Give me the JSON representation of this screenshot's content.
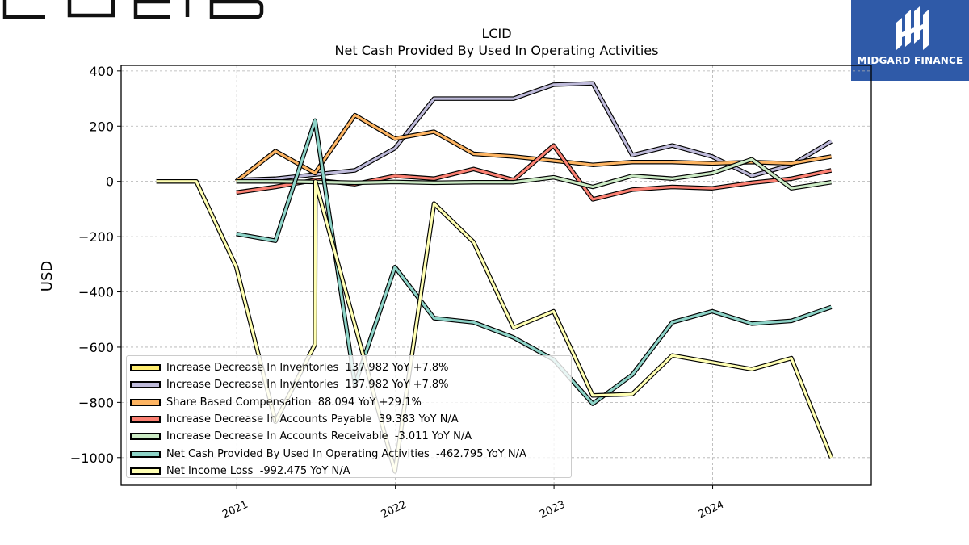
{
  "brand": {
    "logo_text": "LUCID",
    "badge_text": "MIDGARD FINANCE",
    "badge_color": "#2f5aa8"
  },
  "chart_data": {
    "type": "line",
    "title": "LCID",
    "subtitle": "Net Cash Provided By Used In Operating Activities",
    "ylabel": "USD",
    "xlabel": "",
    "ylim": [
      -1100,
      420
    ],
    "yticks": [
      400,
      200,
      0,
      -200,
      -400,
      -600,
      -800,
      -1000
    ],
    "ytick_labels": [
      "400",
      "200",
      "0",
      "−200",
      "−400",
      "−600",
      "−800",
      "−1000"
    ],
    "xlim": [
      "2020-04-10",
      "2024-12-31"
    ],
    "xticks": [
      "2021-01-01",
      "2022-01-01",
      "2023-01-01",
      "2024-01-01"
    ],
    "xtick_labels": [
      "2021",
      "2022",
      "2023",
      "2024"
    ],
    "grid": true,
    "legend_position": "lower left",
    "series": [
      {
        "name": "Increase Decrease In Inventories",
        "legend": "Increase Decrease In Inventories  137.982 YoY +7.8%",
        "color": "#ffed6f",
        "x": [],
        "values": []
      },
      {
        "name": "Increase Decrease In Inventories",
        "legend": "Increase Decrease In Inventories  137.982 YoY +7.8%",
        "color": "#bebada",
        "x": [
          "2020-12-31",
          "2021-03-31",
          "2021-06-30",
          "2021-09-30",
          "2021-12-31",
          "2022-03-31",
          "2022-06-30",
          "2022-09-30",
          "2022-12-31",
          "2023-03-31",
          "2023-06-30",
          "2023-09-30",
          "2023-12-31",
          "2024-03-31",
          "2024-06-30",
          "2024-09-30"
        ],
        "values": [
          5,
          10,
          25,
          40,
          120,
          300,
          300,
          300,
          350,
          355,
          95,
          130,
          90,
          20,
          60,
          145
        ]
      },
      {
        "name": "Share Based Compensation",
        "legend": "Share Based Compensation  88.094 YoY +29.1%",
        "color": "#fdb462",
        "x": [
          "2020-12-31",
          "2021-03-31",
          "2021-06-30",
          "2021-09-30",
          "2021-12-31",
          "2022-03-31",
          "2022-06-30",
          "2022-09-30",
          "2022-12-31",
          "2023-03-31",
          "2023-06-30",
          "2023-09-30",
          "2023-12-31",
          "2024-03-31",
          "2024-06-30",
          "2024-09-30"
        ],
        "values": [
          0,
          110,
          30,
          240,
          155,
          180,
          100,
          90,
          75,
          60,
          70,
          70,
          65,
          70,
          65,
          90
        ]
      },
      {
        "name": "Increase Decrease In Accounts Payable",
        "legend": "Increase Decrease In Accounts Payable  39.383 YoY N/A",
        "color": "#fb8072",
        "x": [
          "2020-12-31",
          "2021-03-31",
          "2021-06-30",
          "2021-09-30",
          "2021-12-31",
          "2022-03-31",
          "2022-06-30",
          "2022-09-30",
          "2022-12-31",
          "2023-03-31",
          "2023-06-30",
          "2023-09-30",
          "2023-12-31",
          "2024-03-31",
          "2024-06-30",
          "2024-09-30"
        ],
        "values": [
          -40,
          -20,
          5,
          -10,
          20,
          10,
          45,
          5,
          130,
          -65,
          -30,
          -20,
          -25,
          -5,
          10,
          40
        ]
      },
      {
        "name": "Increase Decrease In Accounts Receivable",
        "legend": "Increase Decrease In Accounts Receivable  -3.011 YoY N/A",
        "color": "#ccebc5",
        "x": [
          "2020-12-31",
          "2021-03-31",
          "2021-06-30",
          "2021-09-30",
          "2021-12-31",
          "2022-03-31",
          "2022-06-30",
          "2022-09-30",
          "2022-12-31",
          "2023-03-31",
          "2023-06-30",
          "2023-09-30",
          "2023-12-31",
          "2024-03-31",
          "2024-06-30",
          "2024-09-30"
        ],
        "values": [
          0,
          0,
          -2,
          -5,
          -2,
          -5,
          -3,
          -3,
          15,
          -20,
          20,
          10,
          30,
          80,
          -25,
          -3
        ]
      },
      {
        "name": "Net Cash Provided By Used In Operating Activities",
        "legend": "Net Cash Provided By Used In Operating Activities  -462.795 YoY N/A",
        "color": "#8dd3c7",
        "x": [
          "2020-12-31",
          "2021-03-31",
          "2021-06-30",
          "2021-09-30",
          "2021-12-31",
          "2022-03-31",
          "2022-06-30",
          "2022-09-30",
          "2022-12-31",
          "2023-03-31",
          "2023-06-30",
          "2023-09-30",
          "2023-12-31",
          "2024-03-31",
          "2024-06-30",
          "2024-09-30"
        ],
        "values": [
          -190,
          -215,
          220,
          -735,
          -310,
          -495,
          -510,
          -565,
          -645,
          -805,
          -700,
          -510,
          -470,
          -515,
          -505,
          -455
        ]
      },
      {
        "name": "Net Income Loss",
        "legend": "Net Income Loss  -992.475 YoY N/A",
        "color": "#ffffb3",
        "x": [
          "2020-06-30",
          "2020-09-30",
          "2020-12-31",
          "2021-03-31",
          "2021-06-30",
          "2021-07-01",
          "2021-09-30",
          "2021-12-31",
          "2022-03-31",
          "2022-06-30",
          "2022-09-30",
          "2022-12-31",
          "2023-03-31",
          "2023-06-30",
          "2023-09-30",
          "2023-12-31",
          "2024-03-31",
          "2024-06-30",
          "2024-09-30"
        ],
        "values": [
          0,
          0,
          -310,
          -870,
          -590,
          0,
          -520,
          -1050,
          -80,
          -220,
          -530,
          -470,
          -775,
          -770,
          -630,
          -655,
          -680,
          -640,
          -1000
        ]
      }
    ]
  }
}
